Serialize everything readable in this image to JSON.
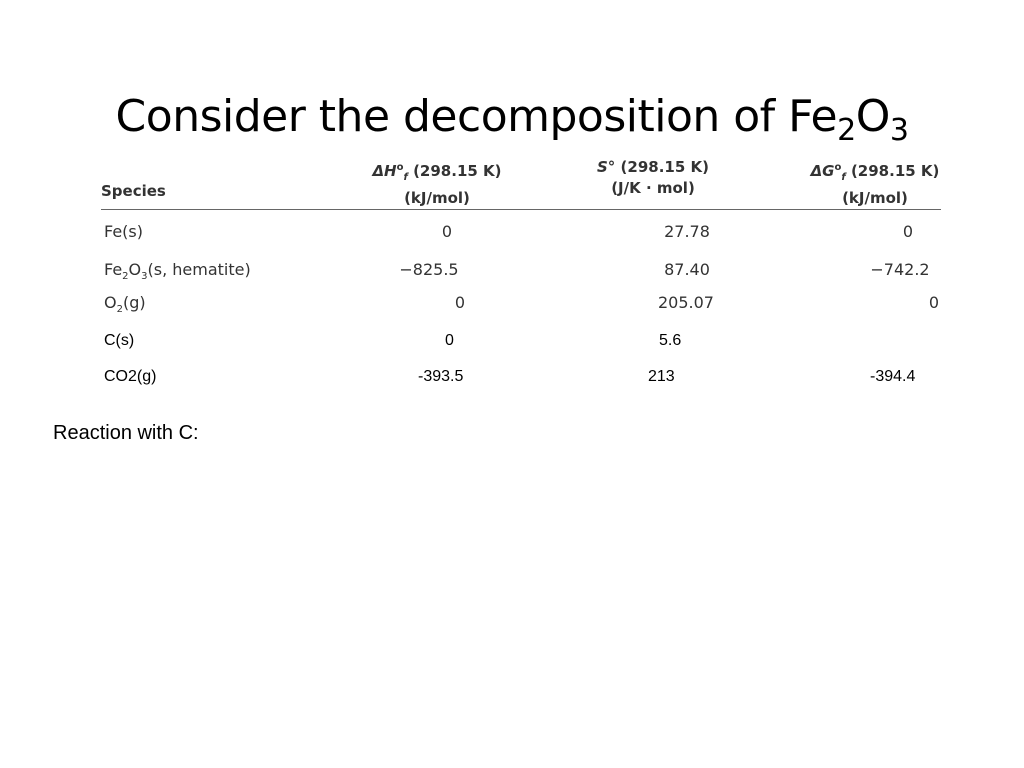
{
  "title": {
    "text": "Consider the decomposition of Fe",
    "sub1": "2",
    "mid": "O",
    "sub2": "3"
  },
  "table": {
    "headers": {
      "species": "Species",
      "dh": {
        "sym": "ΔH",
        "sup": "o",
        "sub": "f",
        "temp": " (298.15 K)",
        "unit": "(kJ/mol)"
      },
      "s": {
        "sym": "S°",
        "temp": " (298.15 K)",
        "unit": "(J/K · mol)"
      },
      "dg": {
        "sym": "ΔG",
        "sup": "o",
        "sub": "f",
        "temp": " (298.15 K)",
        "unit": "(kJ/mol)"
      }
    },
    "rows": [
      {
        "species_pre": "Fe(s)",
        "species_sub": "",
        "species_post": "",
        "dh": "0",
        "s": "27.78",
        "dg": "0"
      },
      {
        "species_pre": "Fe",
        "species_sub": "2",
        "species_mid": "O",
        "species_sub2": "3",
        "species_post": "(s, hematite)",
        "dh": "−825.5",
        "s": "87.40",
        "dg": "−742.2"
      },
      {
        "species_pre": "O",
        "species_sub": "2",
        "species_post": "(g)",
        "dh": "0",
        "s": "205.07",
        "dg": "0"
      }
    ],
    "extra_rows": [
      {
        "species": "C(s)",
        "dh": "0",
        "s": "5.6",
        "dg": ""
      },
      {
        "species": "CO2(g)",
        "dh": "-393.5",
        "s": "213",
        "dg": "-394.4"
      }
    ]
  },
  "reaction_label": "Reaction with C:"
}
